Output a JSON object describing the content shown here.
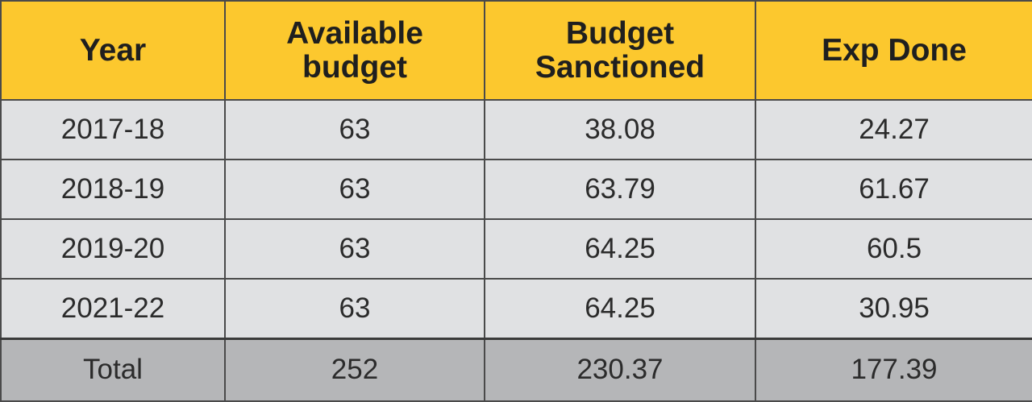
{
  "table": {
    "headers": [
      {
        "lines": [
          "Year"
        ]
      },
      {
        "lines": [
          "Available",
          "budget"
        ]
      },
      {
        "lines": [
          "Budget",
          "Sanctioned"
        ]
      },
      {
        "lines": [
          "Exp Done"
        ]
      }
    ],
    "rows": [
      [
        "2017-18",
        "63",
        "38.08",
        "24.27"
      ],
      [
        "2018-19",
        "63",
        "63.79",
        "61.67"
      ],
      [
        "2019-20",
        "63",
        "64.25",
        "60.5"
      ],
      [
        "2021-22",
        "63",
        "64.25",
        "30.95"
      ]
    ],
    "total": [
      "Total",
      "252",
      "230.37",
      "177.39"
    ]
  },
  "colors": {
    "header_bg": "#fcc82e",
    "row_bg": "#e0e1e3",
    "total_bg": "#b5b6b8",
    "border": "#4a4a4a"
  }
}
